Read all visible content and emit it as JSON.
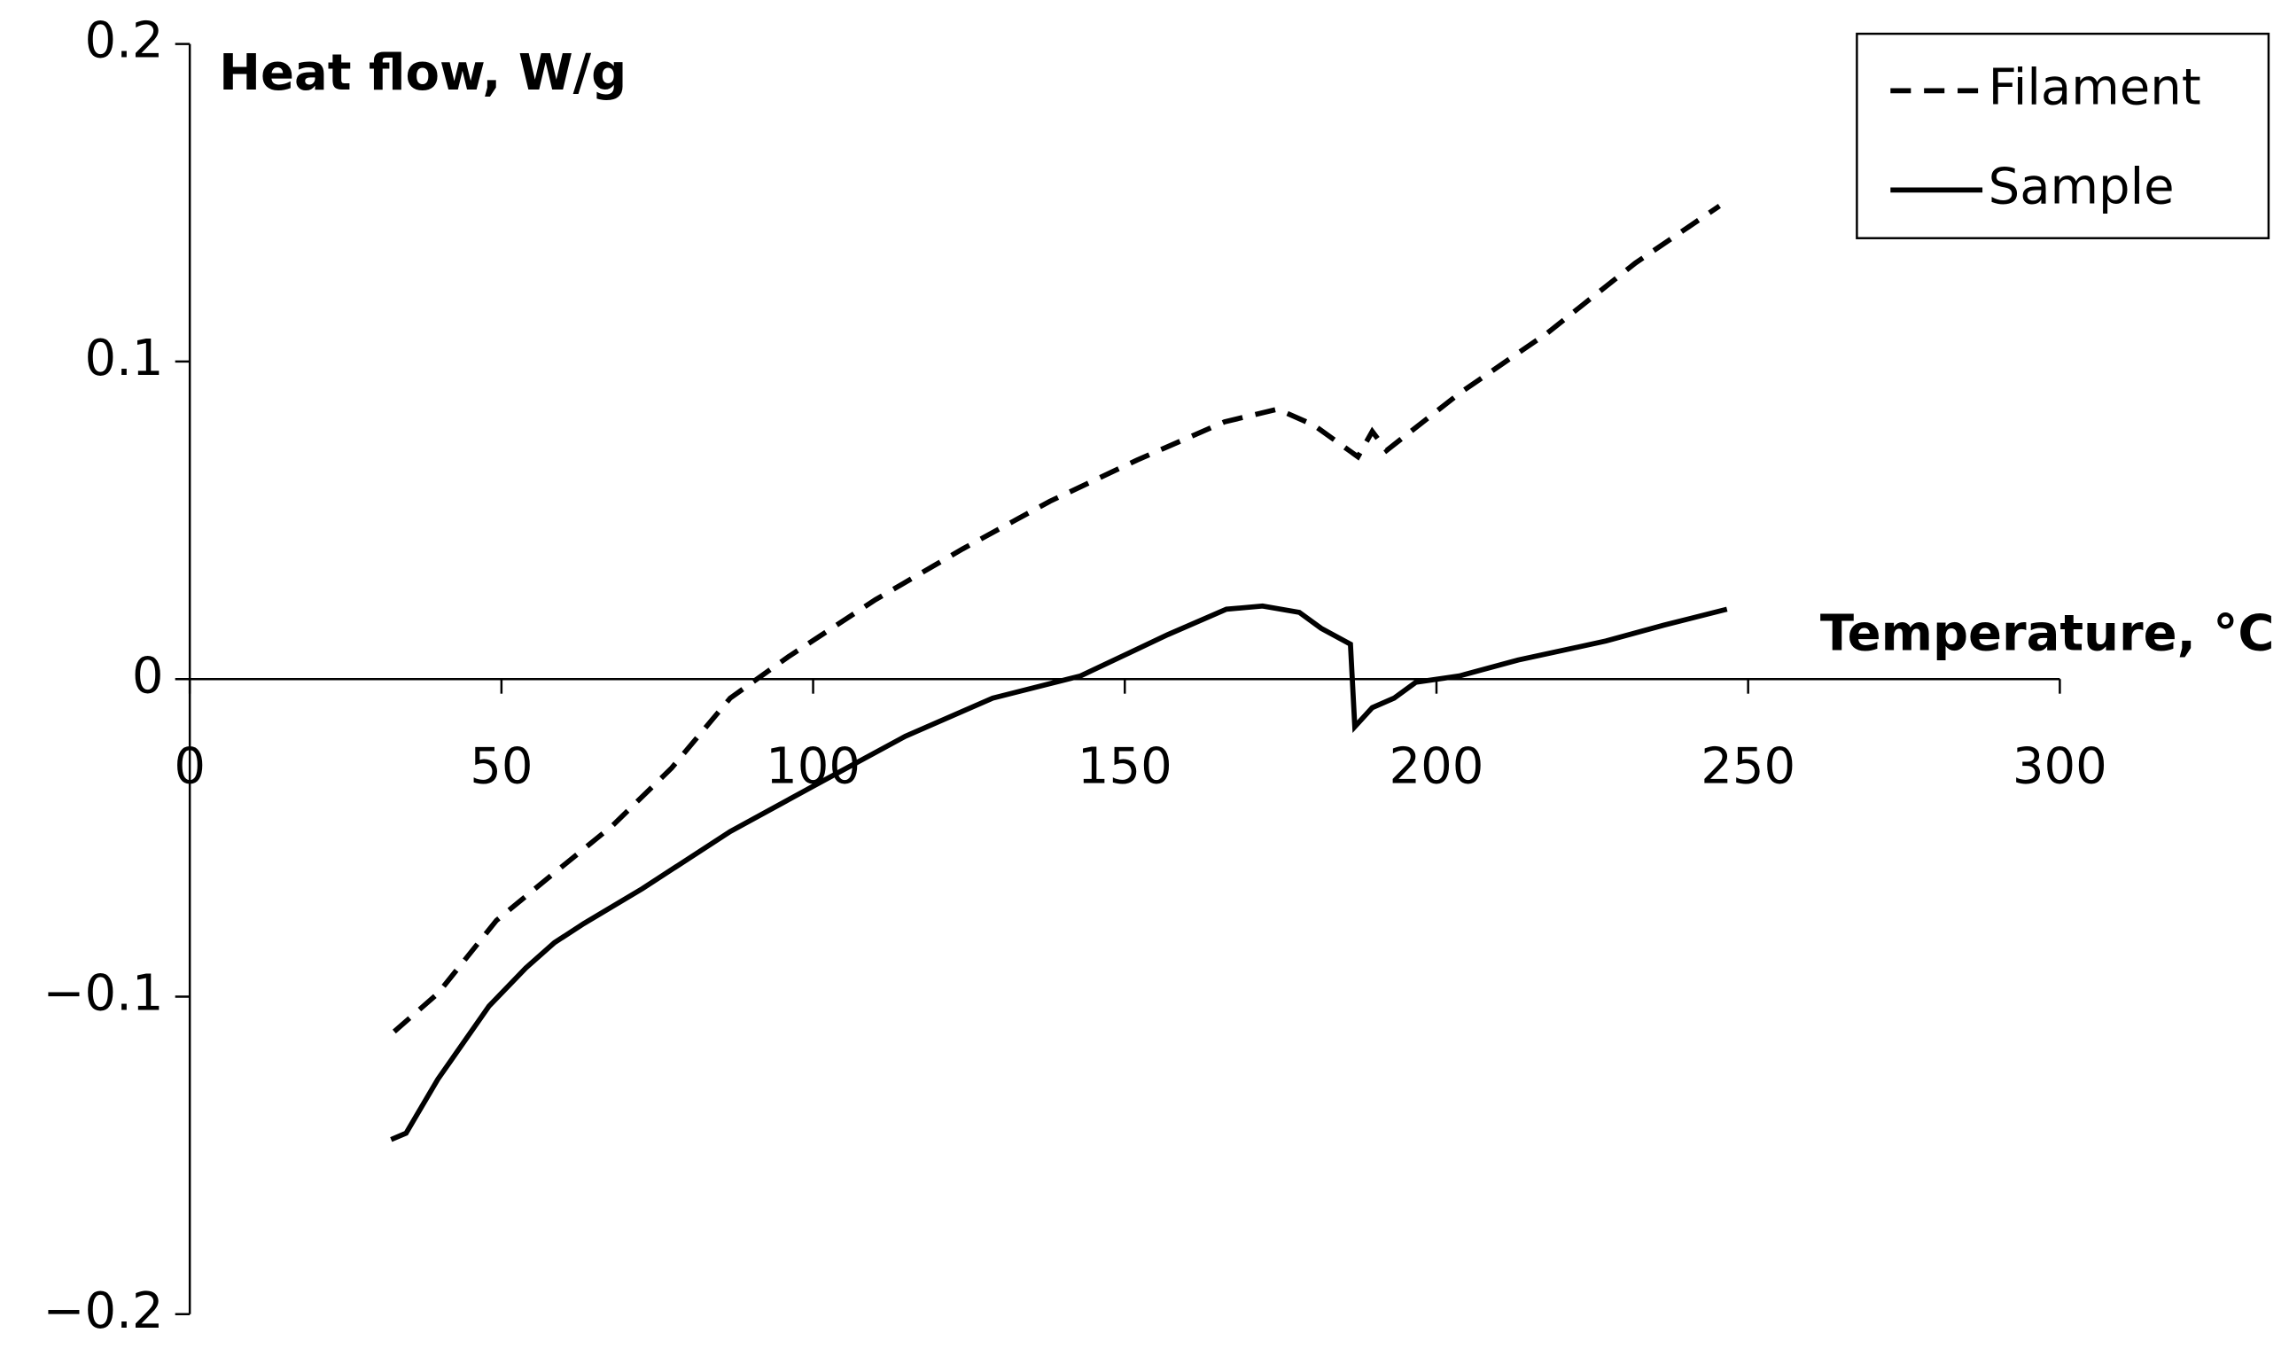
{
  "chart_data": {
    "type": "line",
    "y_label": "Heat flow, W/g",
    "x_label": "Temperature, °C",
    "xlim": [
      0,
      300
    ],
    "xticks": [
      0,
      50,
      100,
      150,
      200,
      250,
      300
    ],
    "ylim": [
      -0.2,
      0.2
    ],
    "yticks": [
      {
        "value": -0.2,
        "label": "−0.2"
      },
      {
        "value": -0.1,
        "label": "−0.1"
      },
      0,
      0.1,
      0.2
    ],
    "legend": "top-right",
    "series": [
      {
        "name": "Filament",
        "color": "#000000",
        "dash": true,
        "x": [
          32.8,
          39.8,
          49.2,
          58.5,
          67.9,
          77.3,
          86.7,
          96,
          110,
          124,
          138,
          152,
          166,
          174.5,
          180.3,
          187.4,
          189.7,
          192,
          203.7,
          217.8,
          231.9,
          245.4
        ],
        "values": [
          -0.111,
          -0.099,
          -0.076,
          -0.061,
          -0.046,
          -0.028,
          -0.006,
          0.007,
          0.025,
          0.041,
          0.056,
          0.069,
          0.081,
          0.085,
          0.08,
          0.07,
          0.078,
          0.072,
          0.09,
          0.109,
          0.131,
          0.149
        ]
      },
      {
        "name": "Sample",
        "color": "#000000",
        "dash": false,
        "x": [
          32.3,
          34.7,
          39.8,
          48,
          53.9,
          58.5,
          63.2,
          72.6,
          86.7,
          100.7,
          114.8,
          128.8,
          142.9,
          156.9,
          166.3,
          172.1,
          178,
          181.5,
          186.2,
          186.9,
          189.7,
          193.2,
          196.7,
          203.7,
          213.1,
          227.2,
          236.5,
          246.6
        ],
        "values": [
          -0.145,
          -0.143,
          -0.126,
          -0.103,
          -0.091,
          -0.083,
          -0.077,
          -0.066,
          -0.048,
          -0.033,
          -0.018,
          -0.006,
          0.001,
          0.014,
          0.022,
          0.023,
          0.021,
          0.016,
          0.011,
          -0.015,
          -0.009,
          -0.006,
          -0.001,
          0.001,
          0.006,
          0.012,
          0.017,
          0.022
        ]
      }
    ]
  }
}
